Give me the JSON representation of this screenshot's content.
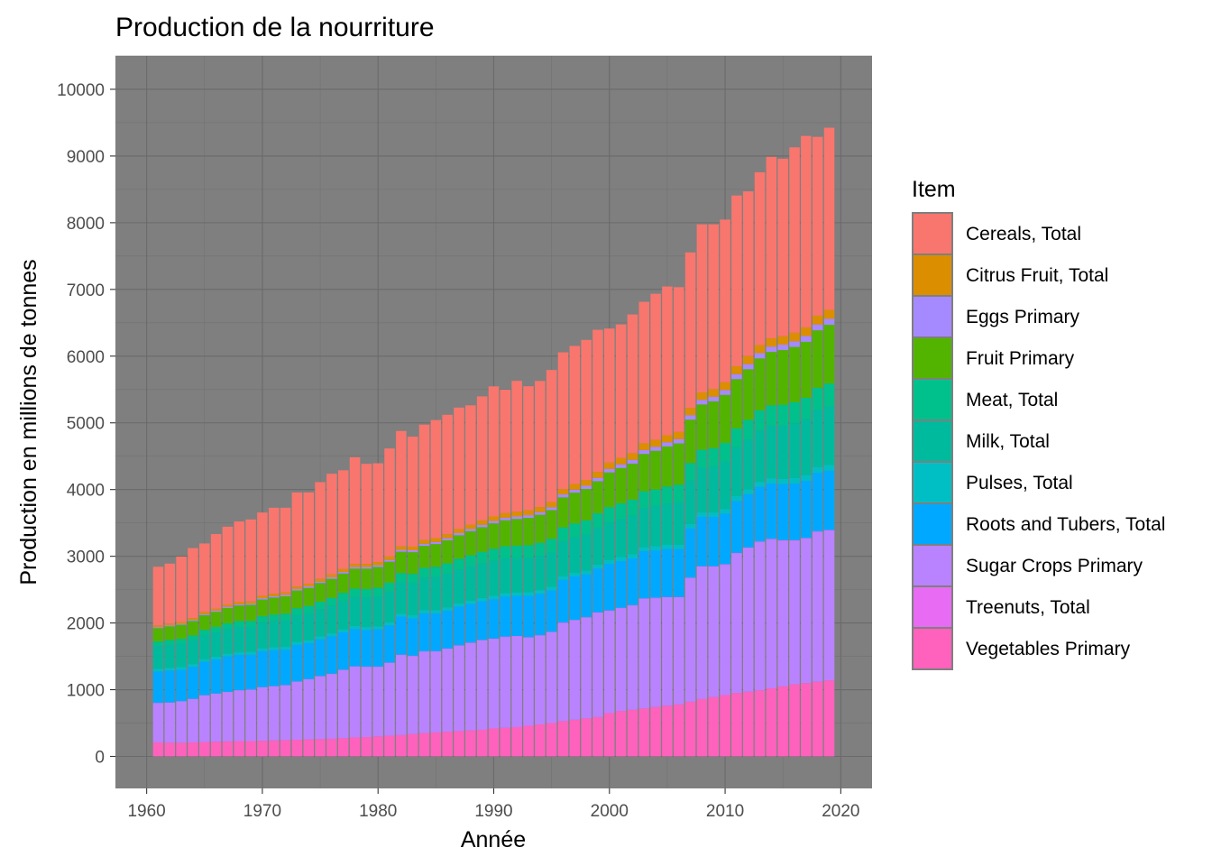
{
  "chart_data": {
    "type": "bar",
    "stacked": true,
    "title": "Production de la nourriture",
    "xlabel": "Année",
    "ylabel": "Production en millions de tonnes",
    "xlim": [
      1957.3,
      2022.7
    ],
    "ylim": [
      -480,
      10500
    ],
    "x_ticks": [
      1960,
      1970,
      1980,
      1990,
      2000,
      2010,
      2020
    ],
    "y_ticks": [
      0,
      1000,
      2000,
      3000,
      4000,
      5000,
      6000,
      7000,
      8000,
      9000,
      10000
    ],
    "grid": true,
    "panel_background": "#7f7f7f",
    "legend": {
      "title": "Item",
      "position": "right"
    },
    "x": [
      1961,
      1962,
      1963,
      1964,
      1965,
      1966,
      1967,
      1968,
      1969,
      1970,
      1971,
      1972,
      1973,
      1974,
      1975,
      1976,
      1977,
      1978,
      1979,
      1980,
      1981,
      1982,
      1983,
      1984,
      1985,
      1986,
      1987,
      1988,
      1989,
      1990,
      1991,
      1992,
      1993,
      1994,
      1995,
      1996,
      1997,
      1998,
      1999,
      2000,
      2001,
      2002,
      2003,
      2004,
      2005,
      2006,
      2007,
      2008,
      2009,
      2010,
      2011,
      2012,
      2013,
      2014,
      2015,
      2016,
      2017,
      2018,
      2019
    ],
    "series": [
      {
        "name": "Vegetables Primary",
        "color": "#FF62BC",
        "values": [
          210,
          205,
          205,
          210,
          215,
          220,
          225,
          230,
          230,
          235,
          240,
          245,
          250,
          255,
          260,
          265,
          275,
          285,
          290,
          300,
          310,
          320,
          335,
          350,
          360,
          370,
          380,
          390,
          400,
          420,
          430,
          440,
          460,
          480,
          500,
          530,
          550,
          570,
          590,
          650,
          680,
          700,
          720,
          740,
          760,
          780,
          820,
          860,
          890,
          920,
          950,
          970,
          990,
          1020,
          1050,
          1080,
          1100,
          1120,
          1140
        ]
      },
      {
        "name": "Sugar Crops Primary",
        "color": "#B983FF",
        "values": [
          590,
          600,
          620,
          650,
          700,
          720,
          740,
          760,
          770,
          800,
          810,
          820,
          870,
          900,
          940,
          970,
          1020,
          1060,
          1050,
          1040,
          1090,
          1200,
          1170,
          1220,
          1210,
          1240,
          1280,
          1310,
          1340,
          1340,
          1360,
          1360,
          1320,
          1330,
          1360,
          1470,
          1490,
          1510,
          1560,
          1530,
          1540,
          1560,
          1640,
          1630,
          1620,
          1600,
          1850,
          1980,
          1950,
          1950,
          2090,
          2150,
          2220,
          2230,
          2180,
          2150,
          2160,
          2240,
          2240
        ]
      },
      {
        "name": "Treenuts, Total",
        "color": "#E76BF3",
        "values": [
          3,
          3,
          3,
          3,
          3,
          3,
          3,
          3,
          4,
          4,
          4,
          4,
          4,
          4,
          5,
          5,
          5,
          5,
          5,
          5,
          5,
          5,
          5,
          5,
          6,
          6,
          6,
          6,
          6,
          6,
          6,
          6,
          7,
          7,
          7,
          7,
          7,
          7,
          7,
          8,
          8,
          8,
          8,
          9,
          9,
          9,
          9,
          10,
          10,
          10,
          10,
          11,
          11,
          11,
          12,
          12,
          12,
          12,
          13
        ]
      },
      {
        "name": "Roots and Tubers, Total",
        "color": "#00A9FF",
        "values": [
          470,
          480,
          470,
          480,
          500,
          510,
          530,
          530,
          520,
          540,
          540,
          530,
          550,
          540,
          550,
          560,
          560,
          560,
          550,
          560,
          560,
          570,
          560,
          570,
          570,
          570,
          580,
          580,
          580,
          590,
          600,
          600,
          620,
          620,
          620,
          640,
          650,
          640,
          660,
          700,
          700,
          700,
          710,
          710,
          720,
          720,
          740,
          740,
          740,
          760,
          780,
          800,
          820,
          830,
          840,
          850,
          860,
          880,
          890
        ]
      },
      {
        "name": "Pulses, Total",
        "color": "#00BFC4",
        "values": [
          40,
          40,
          41,
          41,
          41,
          42,
          42,
          42,
          42,
          43,
          43,
          43,
          43,
          44,
          44,
          44,
          45,
          45,
          45,
          45,
          46,
          46,
          46,
          47,
          47,
          48,
          48,
          49,
          50,
          52,
          52,
          53,
          54,
          55,
          55,
          56,
          56,
          57,
          58,
          59,
          60,
          61,
          61,
          62,
          62,
          63,
          64,
          66,
          67,
          69,
          71,
          73,
          75,
          77,
          79,
          81,
          83,
          85,
          87
        ]
      },
      {
        "name": "Milk, Total",
        "color": "#00BA9D",
        "values": [
          340,
          345,
          350,
          355,
          360,
          365,
          370,
          375,
          375,
          385,
          390,
          395,
          400,
          405,
          410,
          420,
          430,
          440,
          445,
          450,
          460,
          470,
          480,
          490,
          500,
          505,
          510,
          515,
          520,
          525,
          520,
          515,
          515,
          515,
          520,
          525,
          530,
          540,
          550,
          560,
          570,
          580,
          590,
          600,
          620,
          640,
          650,
          670,
          690,
          710,
          730,
          750,
          770,
          790,
          800,
          820,
          840,
          860,
          880
        ]
      },
      {
        "name": "Meat, Total",
        "color": "#00C08B",
        "values": [
          70,
          72,
          74,
          76,
          78,
          82,
          85,
          88,
          90,
          95,
          100,
          103,
          105,
          108,
          110,
          113,
          117,
          120,
          125,
          130,
          133,
          137,
          140,
          145,
          150,
          155,
          160,
          165,
          170,
          180,
          182,
          185,
          190,
          195,
          200,
          205,
          210,
          215,
          220,
          230,
          235,
          240,
          245,
          250,
          255,
          260,
          265,
          270,
          275,
          280,
          285,
          290,
          300,
          305,
          310,
          315,
          320,
          330,
          340
        ]
      },
      {
        "name": "Fruit Primary",
        "color": "#53B400",
        "values": [
          200,
          205,
          210,
          215,
          220,
          225,
          230,
          235,
          240,
          250,
          255,
          260,
          265,
          270,
          280,
          285,
          290,
          300,
          305,
          310,
          315,
          320,
          325,
          330,
          340,
          345,
          350,
          360,
          370,
          380,
          390,
          400,
          410,
          420,
          430,
          450,
          460,
          470,
          480,
          520,
          530,
          540,
          560,
          580,
          600,
          620,
          650,
          680,
          700,
          720,
          740,
          760,
          780,
          800,
          820,
          830,
          840,
          860,
          880
        ]
      },
      {
        "name": "Eggs Primary",
        "color": "#A58AFF",
        "values": [
          15,
          15,
          16,
          16,
          17,
          17,
          18,
          18,
          19,
          20,
          20,
          21,
          21,
          22,
          22,
          23,
          24,
          24,
          25,
          26,
          27,
          28,
          29,
          30,
          31,
          32,
          33,
          34,
          35,
          36,
          37,
          38,
          39,
          40,
          42,
          44,
          46,
          48,
          50,
          52,
          54,
          56,
          58,
          60,
          62,
          64,
          66,
          68,
          70,
          72,
          74,
          76,
          78,
          80,
          82,
          84,
          86,
          88,
          90
        ]
      },
      {
        "name": "Citrus Fruit, Total",
        "color": "#DB8E00",
        "values": [
          25,
          25,
          26,
          27,
          28,
          29,
          30,
          31,
          32,
          34,
          35,
          36,
          38,
          39,
          40,
          42,
          43,
          45,
          46,
          48,
          50,
          52,
          54,
          56,
          58,
          60,
          62,
          64,
          66,
          68,
          70,
          72,
          74,
          76,
          78,
          80,
          84,
          86,
          90,
          95,
          98,
          100,
          102,
          104,
          106,
          108,
          110,
          112,
          114,
          116,
          118,
          120,
          122,
          124,
          126,
          128,
          130,
          132,
          134
        ]
      },
      {
        "name": "Cereals, Total",
        "color": "#F8766D",
        "values": [
          880,
          900,
          980,
          1050,
          1030,
          1120,
          1170,
          1210,
          1230,
          1250,
          1290,
          1270,
          1410,
          1370,
          1450,
          1510,
          1480,
          1600,
          1500,
          1480,
          1620,
          1730,
          1650,
          1730,
          1770,
          1790,
          1820,
          1790,
          1860,
          1950,
          1850,
          1960,
          1860,
          1890,
          1980,
          2050,
          2070,
          2100,
          2130,
          2010,
          2000,
          2080,
          2120,
          2190,
          2230,
          2170,
          2330,
          2520,
          2470,
          2440,
          2560,
          2470,
          2590,
          2720,
          2660,
          2780,
          2870,
          2680,
          2730
        ]
      }
    ]
  }
}
